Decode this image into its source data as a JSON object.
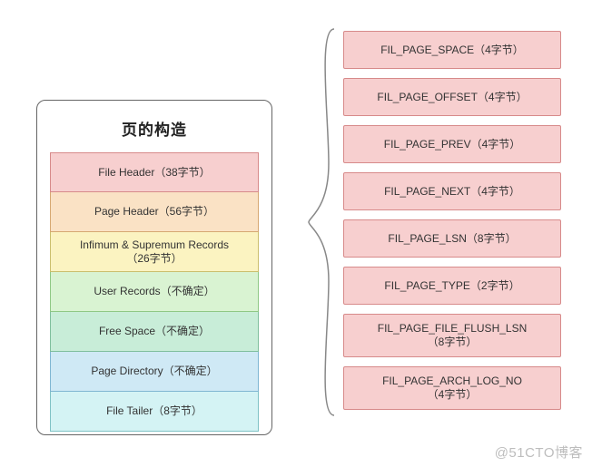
{
  "title": "页的构造",
  "watermark": "@51CTO博客",
  "brace_color": "#888888",
  "left_rows": [
    {
      "label": "File Header（38字节）",
      "fill": "#f7cfcf",
      "border": "#d78a8a"
    },
    {
      "label": "Page Header（56字节）",
      "fill": "#fae2c5",
      "border": "#d6a872"
    },
    {
      "label": "Infimum & Supremum Records\n（26字节）",
      "fill": "#fbf3c1",
      "border": "#cbbf6e"
    },
    {
      "label": "User Records（不确定）",
      "fill": "#d9f3d2",
      "border": "#8fc885"
    },
    {
      "label": "Free Space（不确定）",
      "fill": "#c8edd8",
      "border": "#7fbf9d"
    },
    {
      "label": "Page Directory（不确定）",
      "fill": "#cfe9f5",
      "border": "#7fb6d2"
    },
    {
      "label": "File Tailer（8字节）",
      "fill": "#d4f3f4",
      "border": "#7fc2c5"
    }
  ],
  "right_fill": "#f7cfcf",
  "right_border": "#d78a8a",
  "right_rows": [
    {
      "label": "FIL_PAGE_SPACE（4字节）"
    },
    {
      "label": "FIL_PAGE_OFFSET（4字节）"
    },
    {
      "label": "FIL_PAGE_PREV（4字节）"
    },
    {
      "label": "FIL_PAGE_NEXT（4字节）"
    },
    {
      "label": "FIL_PAGE_LSN（8字节）"
    },
    {
      "label": "FIL_PAGE_TYPE（2字节）"
    },
    {
      "label": "FIL_PAGE_FILE_FLUSH_LSN\n（8字节）"
    },
    {
      "label": "FIL_PAGE_ARCH_LOG_NO\n（4字节）"
    }
  ]
}
